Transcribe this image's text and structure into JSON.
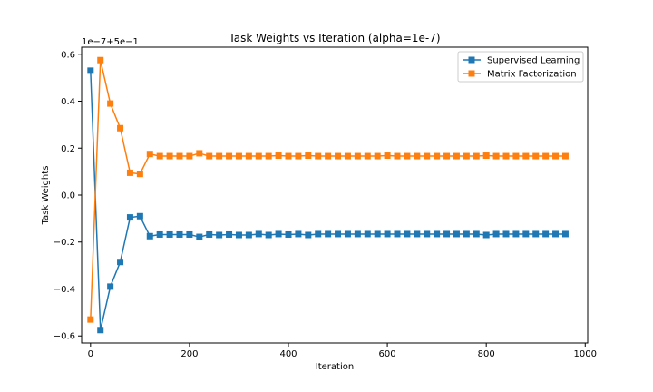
{
  "chart_data": {
    "type": "line",
    "title": "Task Weights vs Iteration (alpha=1e-7)",
    "xlabel": "Iteration",
    "ylabel": "Task Weights",
    "y_offset_label": "1e−7+5e−1",
    "xlim": [
      -18,
      1005
    ],
    "ylim": [
      -0.63,
      0.63
    ],
    "x_ticks": [
      0,
      200,
      400,
      600,
      800,
      1000
    ],
    "x_tick_labels": [
      "0",
      "200",
      "400",
      "600",
      "800",
      "1000"
    ],
    "y_ticks": [
      0.6,
      0.4,
      0.2,
      0.0,
      -0.2,
      -0.4,
      -0.6
    ],
    "y_tick_labels": [
      "0.6",
      "0.4",
      "0.2",
      "0.0",
      "−0.2",
      "−0.4",
      "−0.6"
    ],
    "grid": false,
    "legend_position": "top-right",
    "x": [
      0,
      20,
      40,
      60,
      80,
      100,
      120,
      140,
      160,
      180,
      200,
      220,
      240,
      260,
      280,
      300,
      320,
      340,
      360,
      380,
      400,
      420,
      440,
      460,
      480,
      500,
      520,
      540,
      560,
      580,
      600,
      620,
      640,
      660,
      680,
      700,
      720,
      740,
      760,
      780,
      800,
      820,
      840,
      860,
      880,
      900,
      920,
      940,
      960
    ],
    "series": [
      {
        "name": "Supervised Learning",
        "color": "#1f77b4",
        "marker": "square",
        "values": [
          0.53,
          -0.575,
          -0.39,
          -0.285,
          -0.095,
          -0.09,
          -0.175,
          -0.168,
          -0.168,
          -0.168,
          -0.168,
          -0.178,
          -0.168,
          -0.17,
          -0.168,
          -0.17,
          -0.17,
          -0.166,
          -0.17,
          -0.166,
          -0.168,
          -0.166,
          -0.17,
          -0.166,
          -0.166,
          -0.166,
          -0.166,
          -0.166,
          -0.166,
          -0.166,
          -0.166,
          -0.166,
          -0.166,
          -0.166,
          -0.166,
          -0.166,
          -0.166,
          -0.166,
          -0.166,
          -0.166,
          -0.17,
          -0.166,
          -0.166,
          -0.166,
          -0.166,
          -0.166,
          -0.166,
          -0.166,
          -0.166
        ]
      },
      {
        "name": "Matrix Factorization",
        "color": "#ff7f0e",
        "marker": "square",
        "values": [
          -0.53,
          0.575,
          0.39,
          0.285,
          0.095,
          0.09,
          0.175,
          0.166,
          0.166,
          0.166,
          0.166,
          0.178,
          0.166,
          0.166,
          0.166,
          0.166,
          0.166,
          0.166,
          0.166,
          0.168,
          0.166,
          0.166,
          0.168,
          0.166,
          0.166,
          0.166,
          0.166,
          0.166,
          0.166,
          0.166,
          0.168,
          0.166,
          0.166,
          0.166,
          0.166,
          0.166,
          0.166,
          0.166,
          0.166,
          0.166,
          0.168,
          0.166,
          0.166,
          0.166,
          0.166,
          0.166,
          0.166,
          0.166,
          0.166
        ]
      }
    ]
  }
}
